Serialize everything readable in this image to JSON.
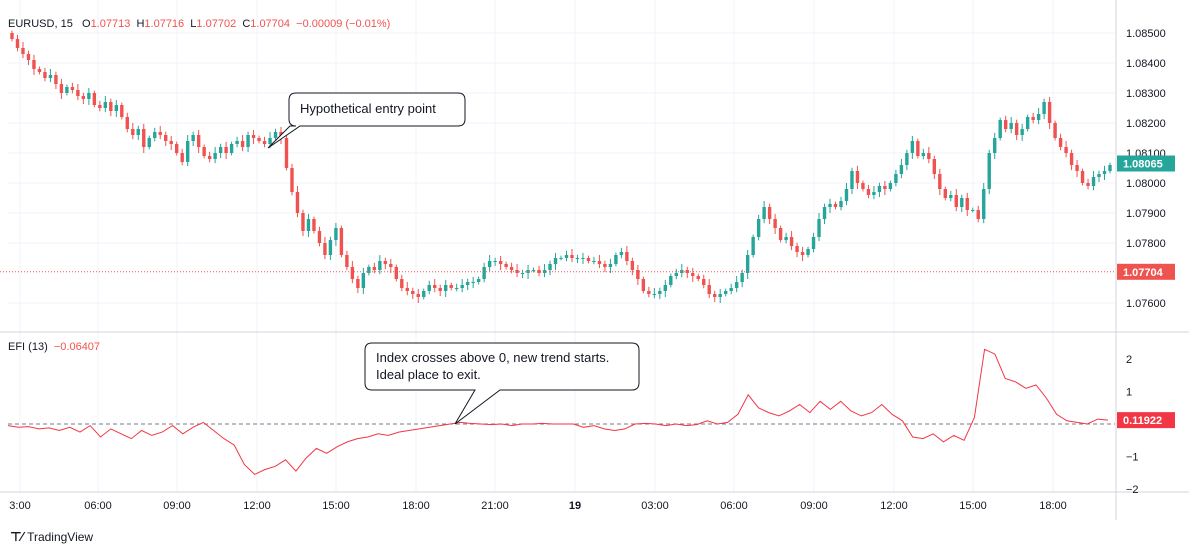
{
  "header": {
    "symbol": "EURUSD",
    "interval": "15",
    "open_label": "O",
    "open": "1.07713",
    "high_label": "H",
    "high": "1.07716",
    "low_label": "L",
    "low": "1.07702",
    "close_label": "C",
    "close": "1.07704",
    "change": "−0.00009 (−0.01%)"
  },
  "indicator": {
    "name": "EFI (13)",
    "value": "−0.06407"
  },
  "annotations": {
    "entry": "Hypothetical entry point",
    "exit_line1": "Index crosses above 0, new trend starts.",
    "exit_line2": "Ideal place to exit."
  },
  "footer": {
    "brand": "TradingView"
  },
  "colors": {
    "up": "#26a69a",
    "down": "#ef5350",
    "efi_line": "#f23645",
    "last_price_badge": "#26a69a",
    "close_badge": "#ef5350"
  },
  "chart_data": [
    {
      "type": "candlestick",
      "title": "EURUSD, 15",
      "ylim": [
        1.0752,
        1.0855
      ],
      "y_ticks": [
        "1.08500",
        "1.08400",
        "1.08300",
        "1.08200",
        "1.08100",
        "1.08000",
        "1.07900",
        "1.07800",
        "1.07600"
      ],
      "x_ticks": [
        "3:00",
        "06:00",
        "09:00",
        "12:00",
        "15:00",
        "18:00",
        "21:00",
        "19",
        "03:00",
        "06:00",
        "09:00",
        "12:00",
        "15:00",
        "18:00"
      ],
      "last_price_label": "1.08065",
      "close_label": "1.07704",
      "close_price": 1.07704,
      "series": [
        {
          "name": "EURUSD",
          "close": [
            1.0848,
            1.0845,
            1.0843,
            1.0841,
            1.0838,
            1.0837,
            1.0835,
            1.0836,
            1.0833,
            1.083,
            1.0832,
            1.0831,
            1.0829,
            1.0828,
            1.083,
            1.0826,
            1.0825,
            1.0827,
            1.0824,
            1.0826,
            1.0822,
            1.0818,
            1.0816,
            1.0818,
            1.0812,
            1.0815,
            1.0817,
            1.0816,
            1.0814,
            1.0813,
            1.081,
            1.0807,
            1.0814,
            1.0816,
            1.0812,
            1.0809,
            1.0808,
            1.081,
            1.0812,
            1.081,
            1.0813,
            1.0814,
            1.0812,
            1.0816,
            1.0815,
            1.0814,
            1.0813,
            1.0815,
            1.0817,
            1.0815,
            1.0805,
            1.0797,
            1.079,
            1.0784,
            1.0788,
            1.0784,
            1.078,
            1.0776,
            1.0781,
            1.0785,
            1.0776,
            1.0772,
            1.0768,
            1.0765,
            1.077,
            1.0772,
            1.0771,
            1.0774,
            1.0773,
            1.0772,
            1.0768,
            1.0765,
            1.0764,
            1.0763,
            1.0762,
            1.0764,
            1.0766,
            1.0765,
            1.0764,
            1.0766,
            1.0765,
            1.0765,
            1.0766,
            1.0767,
            1.0767,
            1.0768,
            1.0772,
            1.0774,
            1.0774,
            1.0773,
            1.0772,
            1.0771,
            1.077,
            1.077,
            1.0771,
            1.0771,
            1.077,
            1.0771,
            1.0773,
            1.0775,
            1.0775,
            1.0776,
            1.0775,
            1.0775,
            1.0775,
            1.0774,
            1.0774,
            1.0773,
            1.0772,
            1.0773,
            1.0776,
            1.0777,
            1.0774,
            1.0771,
            1.0768,
            1.0764,
            1.0763,
            1.0763,
            1.0764,
            1.0766,
            1.0769,
            1.077,
            1.0771,
            1.077,
            1.0769,
            1.0768,
            1.0766,
            1.0763,
            1.0762,
            1.0763,
            1.0764,
            1.0765,
            1.0767,
            1.077,
            1.0776,
            1.0782,
            1.0788,
            1.0792,
            1.0788,
            1.0785,
            1.0781,
            1.0782,
            1.0779,
            1.0777,
            1.0776,
            1.0778,
            1.0782,
            1.0788,
            1.0792,
            1.0793,
            1.0792,
            1.0794,
            1.0798,
            1.0804,
            1.08,
            1.0798,
            1.0796,
            1.0797,
            1.0799,
            1.0798,
            1.08,
            1.0803,
            1.0806,
            1.081,
            1.0814,
            1.0809,
            1.081,
            1.0808,
            1.0803,
            1.0798,
            1.0795,
            1.0796,
            1.0792,
            1.0795,
            1.0791,
            1.0791,
            1.0788,
            1.0798,
            1.081,
            1.0815,
            1.0821,
            1.0818,
            1.082,
            1.0816,
            1.0818,
            1.0822,
            1.0821,
            1.0823,
            1.0827,
            1.082,
            1.0815,
            1.0812,
            1.081,
            1.0806,
            1.0804,
            1.08,
            1.0799,
            1.0802,
            1.0803,
            1.0804,
            1.0806
          ]
        }
      ]
    },
    {
      "type": "line",
      "title": "EFI (13)",
      "ylim": [
        -2.1,
        2.5
      ],
      "y_ticks": [
        2,
        1,
        -1,
        -2
      ],
      "zero_line": 0,
      "last_value_label": "0.11922",
      "series": [
        {
          "name": "EFI (13)",
          "values": [
            -0.05,
            -0.1,
            -0.08,
            -0.15,
            -0.12,
            -0.2,
            -0.1,
            -0.25,
            -0.05,
            -0.4,
            -0.15,
            -0.3,
            -0.45,
            -0.2,
            -0.35,
            -0.25,
            -0.05,
            -0.3,
            -0.1,
            0.05,
            -0.2,
            -0.45,
            -0.65,
            -1.25,
            -1.55,
            -1.4,
            -1.3,
            -1.1,
            -1.45,
            -1.05,
            -0.75,
            -0.9,
            -0.7,
            -0.55,
            -0.45,
            -0.4,
            -0.3,
            -0.35,
            -0.25,
            -0.2,
            -0.15,
            -0.1,
            -0.05,
            0.0,
            0.05,
            0.02,
            0.0,
            -0.02,
            0.0,
            -0.05,
            0.0,
            0.0,
            0.02,
            0.0,
            0.0,
            0.0,
            -0.1,
            -0.05,
            -0.15,
            -0.2,
            -0.15,
            0.0,
            0.02,
            0.0,
            -0.05,
            0.0,
            -0.05,
            -0.02,
            0.1,
            0.0,
            0.05,
            0.3,
            0.9,
            0.5,
            0.35,
            0.25,
            0.4,
            0.6,
            0.35,
            0.7,
            0.45,
            0.7,
            0.4,
            0.25,
            0.35,
            0.6,
            0.3,
            0.1,
            -0.4,
            -0.45,
            -0.3,
            -0.55,
            -0.35,
            -0.5,
            0.2,
            2.3,
            2.15,
            1.4,
            1.3,
            1.1,
            1.2,
            0.8,
            0.3,
            0.1,
            0.05,
            0.0,
            0.15,
            0.12
          ]
        }
      ]
    }
  ]
}
